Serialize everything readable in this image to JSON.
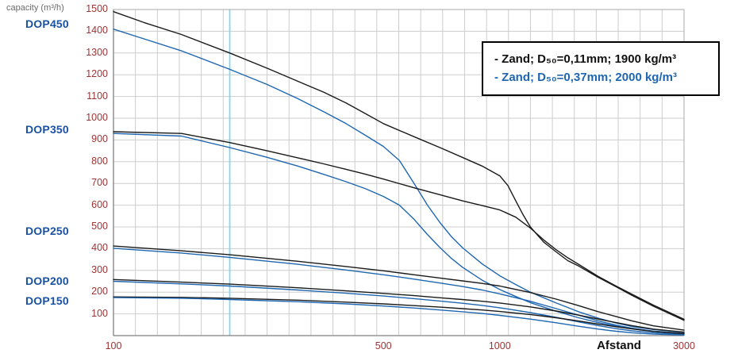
{
  "axes": {
    "y_axis_label": "capacity (m³/h)",
    "x_axis_label": "Afstand"
  },
  "pump_labels": [
    {
      "label": "DOP450"
    },
    {
      "label": "DOP350"
    },
    {
      "label": "DOP250"
    },
    {
      "label": "DOP200"
    },
    {
      "label": "DOP150"
    }
  ],
  "legend": {
    "items": [
      {
        "label": "- Zand; D₅₀=0,11mm; 1900 kg/m³",
        "color": "#111111"
      },
      {
        "label": "- Zand; D₅₀=0,37mm; 2000 kg/m³",
        "color": "#1f66b0"
      }
    ]
  },
  "colors": {
    "series_black": "#1a1a1a",
    "series_blue": "#1f66b0",
    "grid": "#cdcdcd",
    "highlight_line": "#86d7f0",
    "tick_text": "#9c3434",
    "pump_label_text": "#1a52a0"
  },
  "chart_data": {
    "type": "line",
    "x_scale": "log",
    "xlim": [
      100,
      3000
    ],
    "ylim": [
      0,
      1500
    ],
    "x_ticks": [
      100,
      500,
      1000,
      3000
    ],
    "y_ticks": [
      100,
      200,
      300,
      400,
      500,
      600,
      700,
      800,
      900,
      1000,
      1100,
      1200,
      1300,
      1400,
      1500
    ],
    "highlight_x": 200,
    "xlabel": "Afstand",
    "ylabel": "capacity (m³/h)",
    "grid": true,
    "legend_position": "top-right",
    "series": [
      {
        "name": "DOP450 Zand D50=0,11mm 1900 kg/m3",
        "color": "#1a1a1a",
        "points": [
          [
            100,
            1490
          ],
          [
            120,
            1440
          ],
          [
            150,
            1385
          ],
          [
            200,
            1300
          ],
          [
            250,
            1230
          ],
          [
            300,
            1170
          ],
          [
            350,
            1120
          ],
          [
            400,
            1070
          ],
          [
            450,
            1020
          ],
          [
            500,
            975
          ],
          [
            600,
            915
          ],
          [
            700,
            865
          ],
          [
            800,
            820
          ],
          [
            900,
            780
          ],
          [
            1000,
            735
          ],
          [
            1050,
            690
          ],
          [
            1100,
            620
          ],
          [
            1150,
            555
          ],
          [
            1200,
            500
          ],
          [
            1300,
            430
          ],
          [
            1400,
            385
          ],
          [
            1500,
            345
          ],
          [
            1600,
            320
          ],
          [
            1800,
            268
          ],
          [
            2000,
            225
          ],
          [
            2200,
            185
          ],
          [
            2500,
            135
          ],
          [
            2800,
            95
          ],
          [
            3000,
            70
          ]
        ]
      },
      {
        "name": "DOP450 Zand D50=0,37mm 2000 kg/m3",
        "color": "#1f66b0",
        "points": [
          [
            100,
            1410
          ],
          [
            120,
            1365
          ],
          [
            150,
            1310
          ],
          [
            200,
            1225
          ],
          [
            250,
            1155
          ],
          [
            300,
            1090
          ],
          [
            350,
            1030
          ],
          [
            400,
            975
          ],
          [
            450,
            920
          ],
          [
            500,
            870
          ],
          [
            550,
            805
          ],
          [
            600,
            700
          ],
          [
            650,
            600
          ],
          [
            700,
            520
          ],
          [
            750,
            455
          ],
          [
            800,
            405
          ],
          [
            900,
            330
          ],
          [
            1000,
            275
          ],
          [
            1100,
            235
          ],
          [
            1200,
            200
          ],
          [
            1400,
            150
          ],
          [
            1600,
            110
          ],
          [
            1800,
            80
          ],
          [
            2000,
            58
          ],
          [
            2200,
            42
          ],
          [
            2500,
            28
          ],
          [
            3000,
            15
          ]
        ]
      },
      {
        "name": "DOP350 Zand D50=0,11mm 1900 kg/m3",
        "color": "#1a1a1a",
        "points": [
          [
            100,
            938
          ],
          [
            150,
            930
          ],
          [
            200,
            888
          ],
          [
            250,
            850
          ],
          [
            300,
            818
          ],
          [
            350,
            790
          ],
          [
            400,
            765
          ],
          [
            450,
            742
          ],
          [
            500,
            720
          ],
          [
            600,
            680
          ],
          [
            700,
            648
          ],
          [
            800,
            620
          ],
          [
            900,
            598
          ],
          [
            1000,
            578
          ],
          [
            1100,
            545
          ],
          [
            1200,
            495
          ],
          [
            1300,
            440
          ],
          [
            1400,
            395
          ],
          [
            1500,
            358
          ],
          [
            1600,
            328
          ],
          [
            1800,
            272
          ],
          [
            2000,
            228
          ],
          [
            2200,
            190
          ],
          [
            2500,
            140
          ],
          [
            2800,
            100
          ],
          [
            3000,
            75
          ]
        ]
      },
      {
        "name": "DOP350 Zand D50=0,37mm 2000 kg/m3",
        "color": "#1f66b0",
        "points": [
          [
            100,
            930
          ],
          [
            150,
            918
          ],
          [
            200,
            865
          ],
          [
            250,
            820
          ],
          [
            300,
            780
          ],
          [
            350,
            742
          ],
          [
            400,
            708
          ],
          [
            450,
            675
          ],
          [
            500,
            640
          ],
          [
            550,
            600
          ],
          [
            600,
            535
          ],
          [
            650,
            465
          ],
          [
            700,
            405
          ],
          [
            750,
            355
          ],
          [
            800,
            315
          ],
          [
            900,
            255
          ],
          [
            1000,
            212
          ],
          [
            1100,
            180
          ],
          [
            1200,
            152
          ],
          [
            1400,
            112
          ],
          [
            1600,
            82
          ],
          [
            1800,
            60
          ],
          [
            2000,
            44
          ],
          [
            2200,
            32
          ],
          [
            2500,
            20
          ],
          [
            3000,
            10
          ]
        ]
      },
      {
        "name": "DOP250 Zand D50=0,11mm 1900 kg/m3",
        "color": "#1a1a1a",
        "points": [
          [
            100,
            412
          ],
          [
            150,
            390
          ],
          [
            200,
            372
          ],
          [
            300,
            342
          ],
          [
            400,
            318
          ],
          [
            500,
            298
          ],
          [
            600,
            280
          ],
          [
            700,
            265
          ],
          [
            800,
            252
          ],
          [
            900,
            240
          ],
          [
            1000,
            228
          ],
          [
            1200,
            198
          ],
          [
            1400,
            168
          ],
          [
            1600,
            138
          ],
          [
            1800,
            110
          ],
          [
            2000,
            88
          ],
          [
            2200,
            68
          ],
          [
            2500,
            45
          ],
          [
            3000,
            25
          ]
        ]
      },
      {
        "name": "DOP250 Zand D50=0,37mm 2000 kg/m3",
        "color": "#1f66b0",
        "points": [
          [
            100,
            402
          ],
          [
            150,
            380
          ],
          [
            200,
            360
          ],
          [
            300,
            328
          ],
          [
            400,
            302
          ],
          [
            500,
            280
          ],
          [
            600,
            260
          ],
          [
            700,
            242
          ],
          [
            800,
            226
          ],
          [
            900,
            210
          ],
          [
            1000,
            192
          ],
          [
            1200,
            158
          ],
          [
            1400,
            124
          ],
          [
            1600,
            94
          ],
          [
            1800,
            68
          ],
          [
            2000,
            48
          ],
          [
            2200,
            34
          ],
          [
            2500,
            20
          ],
          [
            3000,
            10
          ]
        ]
      },
      {
        "name": "DOP200 Zand D50=0,11mm 1900 kg/m3",
        "color": "#1a1a1a",
        "points": [
          [
            100,
            258
          ],
          [
            150,
            246
          ],
          [
            200,
            237
          ],
          [
            300,
            220
          ],
          [
            400,
            206
          ],
          [
            500,
            194
          ],
          [
            600,
            184
          ],
          [
            700,
            174
          ],
          [
            800,
            166
          ],
          [
            900,
            158
          ],
          [
            1000,
            150
          ],
          [
            1200,
            132
          ],
          [
            1400,
            113
          ],
          [
            1600,
            94
          ],
          [
            1800,
            76
          ],
          [
            2000,
            60
          ],
          [
            2200,
            46
          ],
          [
            2500,
            30
          ],
          [
            3000,
            16
          ]
        ]
      },
      {
        "name": "DOP200 Zand D50=0,37mm 2000 kg/m3",
        "color": "#1f66b0",
        "points": [
          [
            100,
            250
          ],
          [
            150,
            238
          ],
          [
            200,
            228
          ],
          [
            300,
            210
          ],
          [
            400,
            195
          ],
          [
            500,
            182
          ],
          [
            600,
            170
          ],
          [
            700,
            159
          ],
          [
            800,
            149
          ],
          [
            900,
            139
          ],
          [
            1000,
            128
          ],
          [
            1200,
            106
          ],
          [
            1400,
            84
          ],
          [
            1600,
            63
          ],
          [
            1800,
            46
          ],
          [
            2000,
            32
          ],
          [
            2200,
            22
          ],
          [
            2500,
            13
          ],
          [
            3000,
            6
          ]
        ]
      },
      {
        "name": "DOP150 Zand D50=0,11mm 1900 kg/m3",
        "color": "#1a1a1a",
        "points": [
          [
            100,
            178
          ],
          [
            150,
            176
          ],
          [
            200,
            172
          ],
          [
            300,
            163
          ],
          [
            400,
            154
          ],
          [
            500,
            146
          ],
          [
            600,
            138
          ],
          [
            700,
            131
          ],
          [
            800,
            124
          ],
          [
            900,
            118
          ],
          [
            1000,
            111
          ],
          [
            1200,
            97
          ],
          [
            1400,
            82
          ],
          [
            1600,
            67
          ],
          [
            1800,
            53
          ],
          [
            2000,
            41
          ],
          [
            2200,
            31
          ],
          [
            2500,
            19
          ],
          [
            3000,
            9
          ]
        ]
      },
      {
        "name": "DOP150 Zand D50=0,37mm 2000 kg/m3",
        "color": "#1f66b0",
        "points": [
          [
            100,
            175
          ],
          [
            150,
            172
          ],
          [
            200,
            166
          ],
          [
            300,
            156
          ],
          [
            400,
            146
          ],
          [
            500,
            136
          ],
          [
            600,
            127
          ],
          [
            700,
            118
          ],
          [
            800,
            110
          ],
          [
            900,
            102
          ],
          [
            1000,
            93
          ],
          [
            1200,
            76
          ],
          [
            1400,
            59
          ],
          [
            1600,
            43
          ],
          [
            1800,
            30
          ],
          [
            2000,
            20
          ],
          [
            2200,
            13
          ],
          [
            2500,
            7
          ],
          [
            3000,
            3
          ]
        ]
      }
    ]
  }
}
